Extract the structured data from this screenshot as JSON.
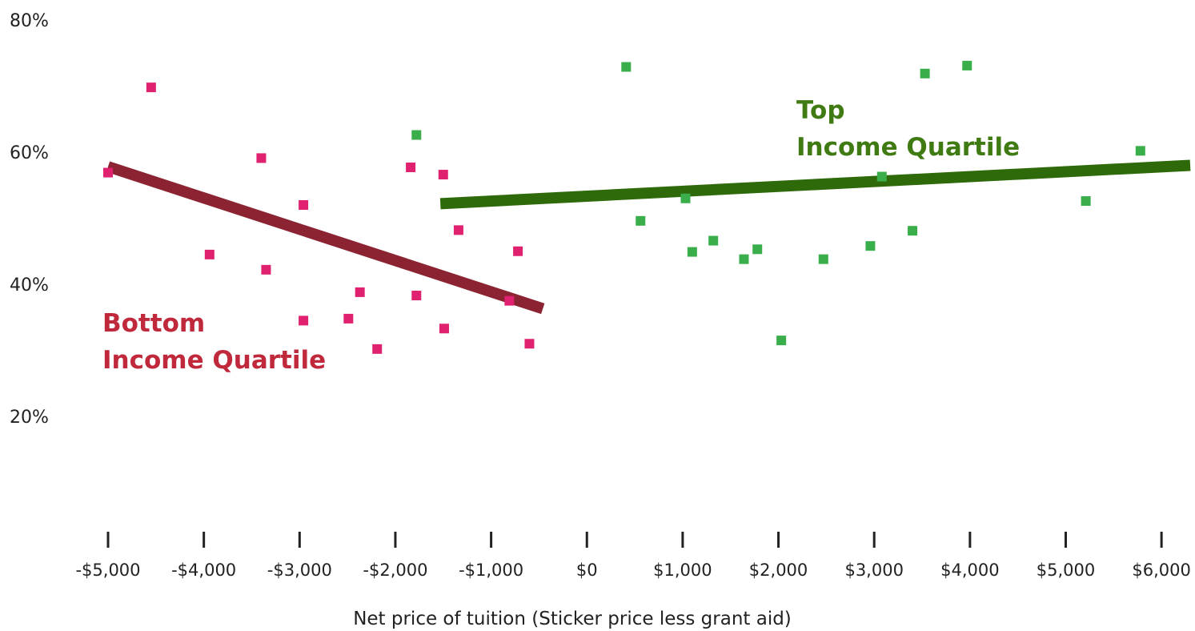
{
  "chart_data": {
    "type": "scatter",
    "title": "",
    "xlabel": "Net price of tuition (Sticker price less grant aid)",
    "ylabel": "",
    "xlim": [
      -5000,
      6300
    ],
    "ylim": [
      0,
      80
    ],
    "x_ticks": [
      "-$5,000",
      "-$4,000",
      "-$3,000",
      "-$2,000",
      "-$1,000",
      "$0",
      "$1,000",
      "$2,000",
      "$3,000",
      "$4,000",
      "$5,000",
      "$6,000"
    ],
    "x_tick_values": [
      -5000,
      -4000,
      -3000,
      -2000,
      -1000,
      0,
      1000,
      2000,
      3000,
      4000,
      5000,
      6000
    ],
    "y_ticks": [
      "20%",
      "40%",
      "60%",
      "80%"
    ],
    "y_tick_values": [
      20,
      40,
      60,
      80
    ],
    "grid": false,
    "series": [
      {
        "name": "Bottom Income Quartile",
        "label_lines": [
          "Bottom",
          "Income Quartile"
        ],
        "color": "#e0216f",
        "label_color": "#c0283c",
        "line_color": "#8b2332",
        "points": [
          [
            -5000,
            56.9
          ],
          [
            -4550,
            69.8
          ],
          [
            -3400,
            59.1
          ],
          [
            -3940,
            44.5
          ],
          [
            -3350,
            42.2
          ],
          [
            -2960,
            52.0
          ],
          [
            -2960,
            34.5
          ],
          [
            -2490,
            34.8
          ],
          [
            -2370,
            38.8
          ],
          [
            -2190,
            30.2
          ],
          [
            -1840,
            57.7
          ],
          [
            -1780,
            38.3
          ],
          [
            -1500,
            56.6
          ],
          [
            -1490,
            33.3
          ],
          [
            -1340,
            48.2
          ],
          [
            -810,
            37.5
          ],
          [
            -720,
            45.0
          ],
          [
            -600,
            31.0
          ]
        ],
        "trend": [
          [
            -5000,
            57.8
          ],
          [
            -460,
            36.3
          ]
        ]
      },
      {
        "name": "Top Income Quartile",
        "label_lines": [
          "Top",
          "Income Quartile"
        ],
        "color": "#3aae4a",
        "label_color": "#3f7a12",
        "line_color": "#2f6a0a",
        "points": [
          [
            -1780,
            62.6
          ],
          [
            410,
            72.9
          ],
          [
            560,
            49.6
          ],
          [
            1030,
            53.0
          ],
          [
            1100,
            44.9
          ],
          [
            1320,
            46.6
          ],
          [
            1640,
            43.8
          ],
          [
            1780,
            45.3
          ],
          [
            2030,
            31.5
          ],
          [
            2470,
            43.8
          ],
          [
            2960,
            45.8
          ],
          [
            3080,
            56.3
          ],
          [
            3400,
            48.1
          ],
          [
            3530,
            71.9
          ],
          [
            3970,
            73.1
          ],
          [
            5210,
            52.6
          ],
          [
            5780,
            60.2
          ]
        ],
        "trend": [
          [
            -1530,
            52.2
          ],
          [
            6300,
            58.0
          ]
        ]
      }
    ]
  }
}
